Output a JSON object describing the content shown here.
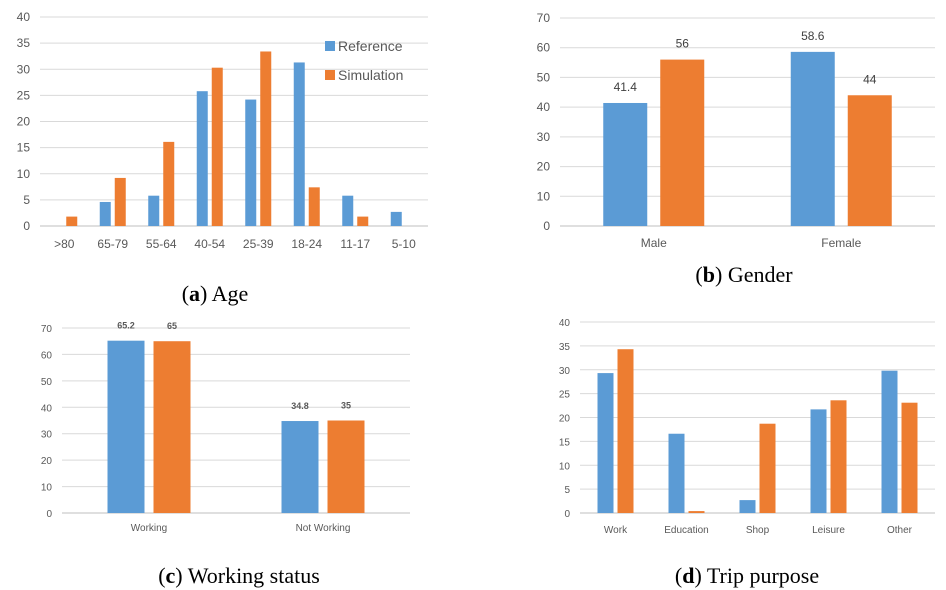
{
  "colors": {
    "reference": "#5b9bd5",
    "simulation": "#ed7d31",
    "grid": "#d9d9d9",
    "axis": "#bfbfbf"
  },
  "captions": [
    {
      "letter": "a",
      "text": "Age"
    },
    {
      "letter": "b",
      "text": "Gender"
    },
    {
      "letter": "c",
      "text": "Working status"
    },
    {
      "letter": "d",
      "text": "Trip purpose"
    }
  ],
  "chart_data": [
    {
      "id": "age",
      "type": "bar",
      "categories": [
        ">80",
        "65-79",
        "55-64",
        "40-54",
        "25-39",
        "18-24",
        "11-17",
        "5-10"
      ],
      "series": [
        {
          "name": "Reference",
          "values": [
            0,
            4.6,
            5.8,
            25.8,
            24.2,
            31.3,
            5.8,
            2.7
          ]
        },
        {
          "name": "Simulation",
          "values": [
            1.8,
            9.2,
            16.1,
            30.3,
            33.4,
            7.4,
            1.8,
            0
          ]
        }
      ],
      "ylim": [
        0,
        40
      ],
      "yticks": [
        0,
        5,
        10,
        15,
        20,
        25,
        30,
        35,
        40
      ],
      "grid": true,
      "legend": "top-right",
      "data_labels": null
    },
    {
      "id": "gender",
      "type": "bar",
      "categories": [
        "Male",
        "Female"
      ],
      "series": [
        {
          "name": "",
          "values": [
            41.4,
            58.6
          ]
        },
        {
          "name": "",
          "values": [
            56,
            44
          ]
        }
      ],
      "ylim": [
        0,
        70
      ],
      "yticks": [
        0,
        10,
        20,
        30,
        40,
        50,
        60,
        70
      ],
      "grid": true,
      "legend": "none",
      "data_labels": [
        [
          "41.4",
          "58.6"
        ],
        [
          "56",
          "44"
        ]
      ]
    },
    {
      "id": "working",
      "type": "bar",
      "categories": [
        "Working",
        "Not Working"
      ],
      "series": [
        {
          "name": "",
          "values": [
            65.2,
            34.8
          ]
        },
        {
          "name": "",
          "values": [
            65,
            35
          ]
        }
      ],
      "ylim": [
        0,
        70
      ],
      "yticks": [
        0,
        10,
        20,
        30,
        40,
        50,
        60,
        70
      ],
      "grid": true,
      "legend": "none",
      "data_labels": [
        [
          "65.2",
          "34.8"
        ],
        [
          "65",
          "35"
        ]
      ]
    },
    {
      "id": "trip",
      "type": "bar",
      "categories": [
        "Work",
        "Education",
        "Shop",
        "Leisure",
        "Other"
      ],
      "series": [
        {
          "name": "",
          "values": [
            29.3,
            16.6,
            2.7,
            21.7,
            29.8
          ]
        },
        {
          "name": "",
          "values": [
            34.3,
            0.4,
            18.7,
            23.6,
            23.1
          ]
        }
      ],
      "ylim": [
        0,
        40
      ],
      "yticks": [
        0,
        5,
        10,
        15,
        20,
        25,
        30,
        35,
        40
      ],
      "grid": true,
      "legend": "none",
      "data_labels": null
    }
  ]
}
